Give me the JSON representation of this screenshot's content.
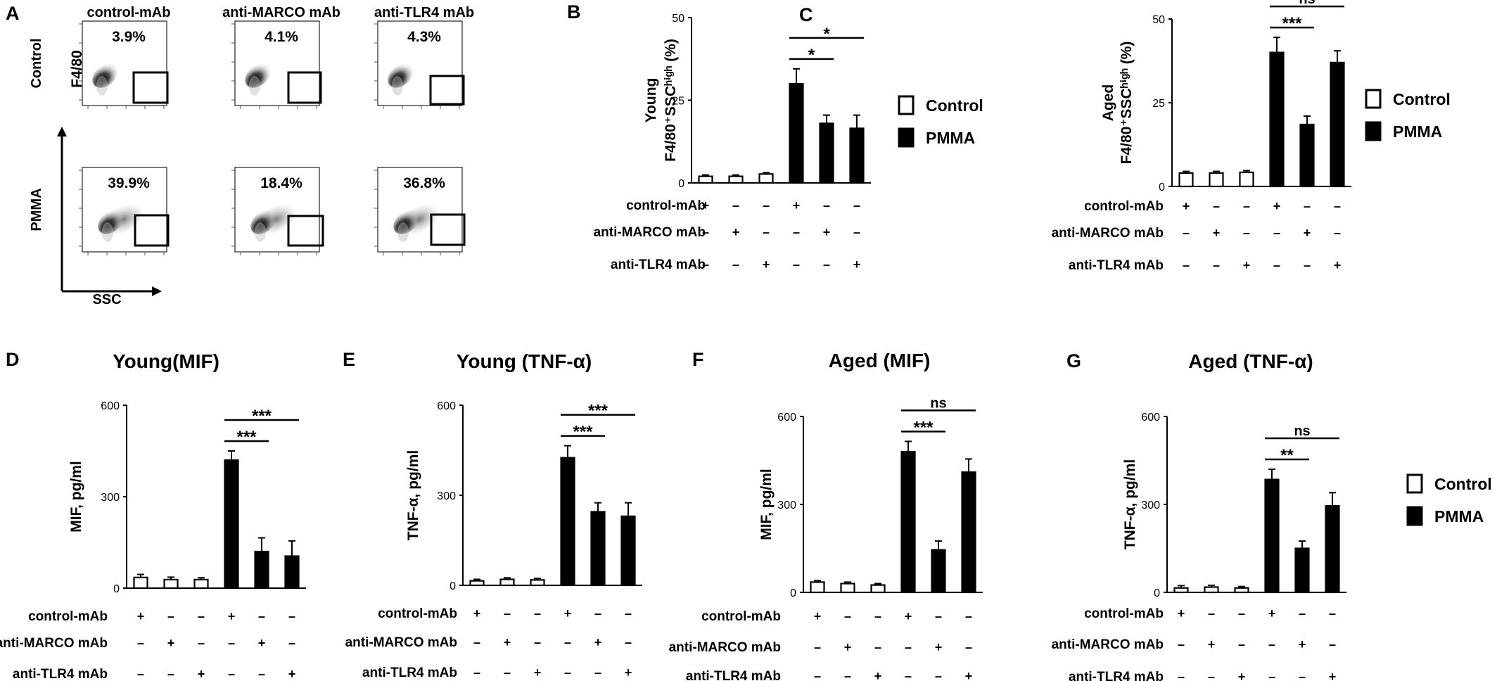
{
  "colors": {
    "control": "#ffffff",
    "pmma": "#000000",
    "stroke": "#000000"
  },
  "treatment_rows": [
    "control-mAb",
    "anti-MARCO mAb",
    "anti-TLR4 mAb"
  ],
  "treatment_matrix": [
    [
      "+",
      "–",
      "–",
      "+",
      "–",
      "–"
    ],
    [
      "–",
      "+",
      "–",
      "–",
      "+",
      "–"
    ],
    [
      "–",
      "–",
      "+",
      "–",
      "–",
      "+"
    ]
  ],
  "legend": {
    "control_label": "Control",
    "pmma_label": "PMMA"
  },
  "flow": {
    "panel_label": "A",
    "columns": [
      "control-mAb",
      "anti-MARCO mAb",
      "anti-TLR4 mAb"
    ],
    "rows": [
      "Control",
      "PMMA"
    ],
    "percents": [
      [
        "3.9%",
        "4.1%",
        "4.3%"
      ],
      [
        "39.9%",
        "18.4%",
        "36.8%"
      ]
    ],
    "x_axis_label": "SSC",
    "y_axis_label": "F4/80"
  },
  "chart_data": [
    {
      "id": "B",
      "type": "bar",
      "panel_label": "B",
      "title": "",
      "ylabel_lines": [
        "Young",
        "F4/80⁺SSCʰⁱᵍʰ (%)"
      ],
      "ylim": [
        0,
        50
      ],
      "yticks": [
        "0",
        "25",
        "50"
      ],
      "values": [
        2,
        2,
        2.7,
        30,
        18,
        16.5
      ],
      "errors": [
        0.4,
        0.4,
        0.4,
        4.5,
        2.5,
        4
      ],
      "groups": [
        "control",
        "control",
        "control",
        "pmma",
        "pmma",
        "pmma"
      ],
      "significance": [
        {
          "from": 3,
          "to": 4,
          "label": "*"
        },
        {
          "from": 3,
          "to": 5,
          "label": "*"
        }
      ]
    },
    {
      "id": "C",
      "type": "bar",
      "panel_label": "C",
      "title": "",
      "ylabel_lines": [
        "Aged",
        "F4/80⁺SSCʰⁱᵍʰ (%)"
      ],
      "ylim": [
        0,
        50
      ],
      "yticks": [
        "0",
        "25",
        "50"
      ],
      "values": [
        4,
        4,
        4.2,
        40,
        18.5,
        37
      ],
      "errors": [
        0.5,
        0.5,
        0.5,
        4.5,
        2.5,
        3.5
      ],
      "groups": [
        "control",
        "control",
        "control",
        "pmma",
        "pmma",
        "pmma"
      ],
      "significance": [
        {
          "from": 3,
          "to": 4,
          "label": "***"
        },
        {
          "from": 3,
          "to": 5,
          "label": "ns"
        }
      ]
    },
    {
      "id": "D",
      "type": "bar",
      "panel_label": "D",
      "title": "Young(MIF)",
      "ylabel_lines": [
        "MIF, pg/ml"
      ],
      "ylim": [
        0,
        600
      ],
      "yticks": [
        "0",
        "300",
        "600"
      ],
      "values": [
        35,
        28,
        28,
        420,
        120,
        105
      ],
      "errors": [
        10,
        8,
        6,
        30,
        45,
        50
      ],
      "groups": [
        "control",
        "control",
        "control",
        "pmma",
        "pmma",
        "pmma"
      ],
      "significance": [
        {
          "from": 3,
          "to": 4,
          "label": "***"
        },
        {
          "from": 3,
          "to": 5,
          "label": "***"
        }
      ]
    },
    {
      "id": "E",
      "type": "bar",
      "panel_label": "E",
      "title": "Young (TNF-α)",
      "ylabel_lines": [
        "TNF-α, pg/ml"
      ],
      "ylim": [
        0,
        600
      ],
      "yticks": [
        "0",
        "300",
        "600"
      ],
      "values": [
        15,
        20,
        18,
        425,
        245,
        230
      ],
      "errors": [
        5,
        5,
        5,
        40,
        30,
        45
      ],
      "groups": [
        "control",
        "control",
        "control",
        "pmma",
        "pmma",
        "pmma"
      ],
      "significance": [
        {
          "from": 3,
          "to": 4,
          "label": "***"
        },
        {
          "from": 3,
          "to": 5,
          "label": "***"
        }
      ]
    },
    {
      "id": "F",
      "type": "bar",
      "panel_label": "F",
      "title": "Aged  (MIF)",
      "ylabel_lines": [
        "MIF, pg/ml"
      ],
      "ylim": [
        0,
        600
      ],
      "yticks": [
        "0",
        "300",
        "600"
      ],
      "values": [
        35,
        30,
        25,
        480,
        145,
        410
      ],
      "errors": [
        5,
        5,
        5,
        35,
        30,
        45
      ],
      "groups": [
        "control",
        "control",
        "control",
        "pmma",
        "pmma",
        "pmma"
      ],
      "significance": [
        {
          "from": 3,
          "to": 4,
          "label": "***"
        },
        {
          "from": 3,
          "to": 5,
          "label": "ns"
        }
      ]
    },
    {
      "id": "G",
      "type": "bar",
      "panel_label": "G",
      "title": "Aged  (TNF-α)",
      "ylabel_lines": [
        "TNF-α, pg/ml"
      ],
      "ylim": [
        0,
        600
      ],
      "yticks": [
        "0",
        "300",
        "600"
      ],
      "values": [
        15,
        18,
        15,
        385,
        150,
        295
      ],
      "errors": [
        8,
        6,
        5,
        35,
        25,
        45
      ],
      "groups": [
        "control",
        "control",
        "control",
        "pmma",
        "pmma",
        "pmma"
      ],
      "significance": [
        {
          "from": 3,
          "to": 4,
          "label": "**"
        },
        {
          "from": 3,
          "to": 5,
          "label": "ns"
        }
      ]
    }
  ]
}
